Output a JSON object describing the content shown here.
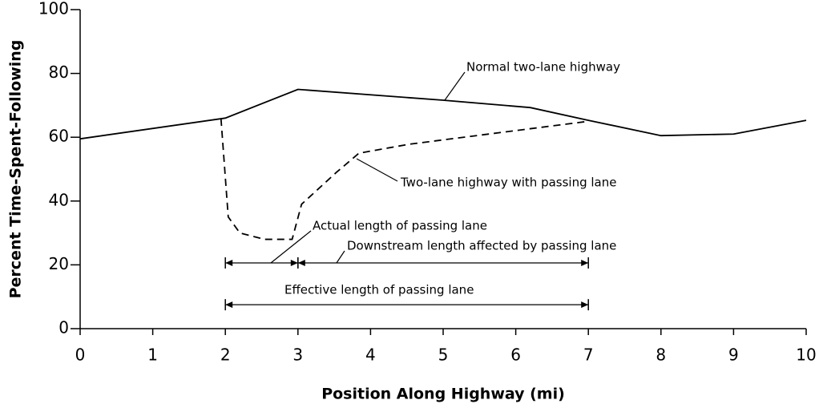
{
  "chart_data": {
    "type": "line",
    "xlabel": "Position Along Highway (mi)",
    "ylabel": "Percent Time-Spent-Following",
    "xlim": [
      0,
      10
    ],
    "xticks": [
      0,
      1,
      2,
      3,
      4,
      5,
      6,
      7,
      8,
      9,
      10
    ],
    "ylim": [
      0,
      100
    ],
    "yticks": [
      0,
      20,
      40,
      60,
      80,
      100
    ],
    "grid": false,
    "series": [
      {
        "name": "Normal two-lane highway",
        "color": "#000000",
        "dash": false,
        "x": [
          0,
          2,
          3,
          5,
          6.2,
          7,
          8,
          9,
          10
        ],
        "values": [
          59.5,
          66,
          75,
          71.6,
          69.3,
          65.3,
          60.5,
          61,
          65.3
        ]
      },
      {
        "name": "Two-lane highway with passing lane",
        "color": "#000000",
        "dash": true,
        "x": [
          1.94,
          2.04,
          2.2,
          2.54,
          2.92,
          3.05,
          3.53,
          3.84,
          4.53,
          7
        ],
        "values": [
          65.8,
          35,
          30,
          28,
          28,
          39,
          49,
          55,
          57.8,
          65
        ]
      }
    ],
    "dimensions": [
      {
        "label": "Actual length of passing lane",
        "x": [
          2,
          3
        ],
        "y": 20.6
      },
      {
        "label": "Downstream length affected by passing lane",
        "x": [
          3,
          7
        ],
        "y": 20.6
      },
      {
        "label": "Effective length of passing lane",
        "x": [
          2,
          7
        ],
        "y": 7.5
      }
    ]
  }
}
